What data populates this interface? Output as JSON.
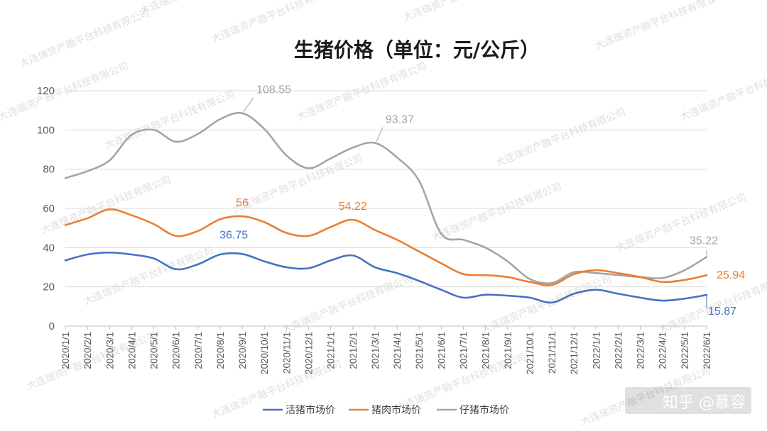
{
  "chart_data": {
    "type": "line",
    "title": "生猪价格（单位：元/公斤）",
    "ylim": [
      0,
      120
    ],
    "yticks": [
      0,
      20,
      40,
      60,
      80,
      100,
      120
    ],
    "grid": true,
    "legend_position": "bottom",
    "x": [
      "2020/1/1",
      "2020/2/1",
      "2020/3/1",
      "2020/4/1",
      "2020/5/1",
      "2020/6/1",
      "2020/7/1",
      "2020/8/1",
      "2020/9/1",
      "2020/10/1",
      "2020/11/1",
      "2020/12/1",
      "2021/1/1",
      "2021/2/1",
      "2021/3/1",
      "2021/4/1",
      "2021/5/1",
      "2021/6/1",
      "2021/7/1",
      "2021/8/1",
      "2021/9/1",
      "2021/10/1",
      "2021/11/1",
      "2021/12/1",
      "2022/1/1",
      "2022/2/1",
      "2022/3/1",
      "2022/4/1",
      "2022/5/1",
      "2022/6/1"
    ],
    "series": [
      {
        "name": "活猪市场价",
        "color": "#4472C4",
        "values": [
          33.5,
          36.5,
          37.5,
          36.5,
          34.5,
          29.0,
          31.5,
          36.5,
          36.75,
          33.0,
          30.0,
          29.5,
          33.5,
          36.0,
          30.0,
          27.0,
          23.0,
          18.5,
          14.5,
          16.0,
          15.5,
          14.5,
          12.0,
          16.5,
          18.5,
          16.5,
          14.5,
          13.0,
          14.0,
          15.87
        ]
      },
      {
        "name": "猪肉市场价",
        "color": "#ED7D31",
        "values": [
          51.5,
          55.0,
          59.5,
          56.5,
          52.0,
          46.0,
          48.5,
          54.5,
          56.0,
          53.0,
          47.5,
          46.0,
          50.5,
          54.22,
          49.0,
          44.0,
          38.0,
          32.0,
          26.5,
          26.0,
          25.0,
          22.5,
          21.0,
          26.5,
          28.5,
          27.0,
          25.0,
          22.5,
          23.5,
          25.94
        ]
      },
      {
        "name": "仔猪市场价",
        "color": "#A5A5A5",
        "values": [
          75.5,
          79.0,
          84.5,
          97.5,
          100.0,
          94.0,
          98.0,
          105.5,
          108.55,
          100.5,
          87.0,
          80.5,
          85.5,
          91.0,
          93.37,
          86.0,
          74.0,
          47.0,
          44.0,
          40.0,
          33.0,
          24.0,
          22.0,
          27.5,
          27.0,
          26.0,
          25.0,
          24.5,
          28.5,
          35.22
        ]
      }
    ],
    "data_labels": [
      {
        "series": 2,
        "index": 8,
        "text": "108.55"
      },
      {
        "series": 2,
        "index": 14,
        "text": "93.37"
      },
      {
        "series": 1,
        "index": 8,
        "text": "56"
      },
      {
        "series": 1,
        "index": 13,
        "text": "54.22"
      },
      {
        "series": 0,
        "index": 8,
        "text": "36.75"
      },
      {
        "series": 2,
        "index": 29,
        "text": "35.22"
      },
      {
        "series": 1,
        "index": 29,
        "text": "25.94"
      },
      {
        "series": 0,
        "index": 29,
        "text": "15.87"
      }
    ]
  },
  "overlay": {
    "brand": "知乎 @慕容",
    "watermark": "大连瑞资产融平台科技有限公司"
  }
}
